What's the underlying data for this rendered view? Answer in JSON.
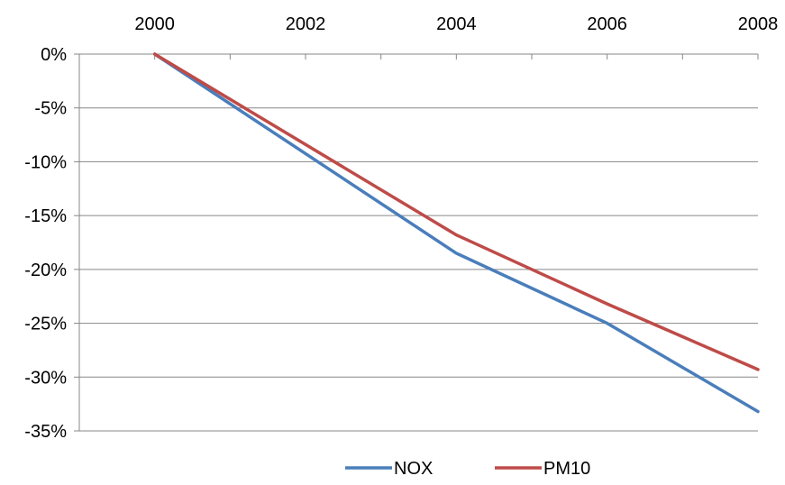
{
  "chart_data": {
    "type": "line",
    "title": "",
    "xlabel": "",
    "ylabel": "",
    "x_axis_position": "top",
    "x_ticks": [
      2000,
      2002,
      2004,
      2006,
      2008
    ],
    "x_tick_labels": [
      "2000",
      "2002",
      "2004",
      "2006",
      "2008"
    ],
    "y_ticks": [
      0,
      -5,
      -10,
      -15,
      -20,
      -25,
      -30,
      -35
    ],
    "y_tick_labels": [
      "0%",
      "-5%",
      "-10%",
      "-15%",
      "-20%",
      "-25%",
      "-30%",
      "-35%"
    ],
    "xlim": [
      1999,
      2008
    ],
    "ylim": [
      -35,
      0
    ],
    "grid": "horizontal",
    "legend_position": "bottom",
    "series": [
      {
        "name": "NOX",
        "color": "#4a7ebb",
        "x": [
          2000,
          2004,
          2006,
          2008
        ],
        "values": [
          0,
          -18.5,
          -25,
          -33.2
        ]
      },
      {
        "name": "PM10",
        "color": "#be4b48",
        "x": [
          2000,
          2004,
          2006,
          2008
        ],
        "values": [
          0,
          -16.8,
          -23.2,
          -29.3
        ]
      }
    ]
  }
}
